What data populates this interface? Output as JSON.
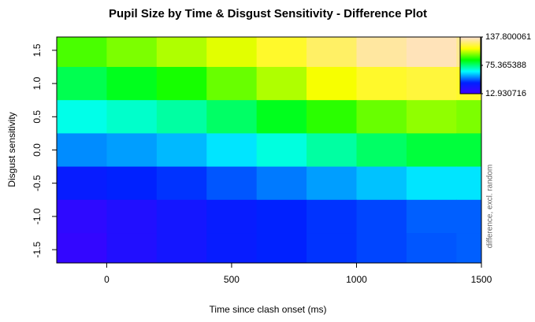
{
  "chart_data": {
    "type": "heatmap",
    "title": "Pupil Size by Time & Disgust Sensitivity - Difference Plot",
    "x_label": "Time since clash onset (ms)",
    "y_label": "Disgust sensitivity",
    "colorbar_label": "difference, excl. random",
    "x": [
      -100,
      100,
      300,
      500,
      700,
      900,
      1100,
      1300,
      1500
    ],
    "y": [
      1.5,
      1.0,
      0.5,
      0,
      -0.5,
      -1.0,
      -1.5
    ],
    "z": [
      [
        95,
        100,
        105,
        110,
        118,
        125,
        132,
        135,
        130
      ],
      [
        80,
        85,
        90,
        98,
        105,
        112,
        118,
        120,
        118
      ],
      [
        65,
        68,
        72,
        78,
        85,
        92,
        98,
        102,
        100
      ],
      [
        50,
        52,
        55,
        60,
        66,
        72,
        78,
        82,
        82
      ],
      [
        35,
        38,
        40,
        44,
        48,
        52,
        56,
        60,
        60
      ],
      [
        20,
        25,
        30,
        35,
        38,
        40,
        42,
        45,
        45
      ],
      [
        18,
        25,
        30,
        35,
        38,
        40,
        42,
        44,
        45
      ]
    ],
    "colors": [
      "#4000ff",
      "#0020ff",
      "#00ffff",
      "#00ff00",
      "#ffff00",
      "#ffe0d0"
    ],
    "xlim": [
      -200,
      1500
    ],
    "xticks": [
      0,
      500,
      1000,
      1500
    ],
    "ylim": [
      -1.7,
      1.7
    ],
    "yticks": [
      {
        "value": -1.5,
        "label": "-1.5"
      },
      {
        "value": -1,
        "label": "-1.0"
      },
      {
        "value": -0.5,
        "label": "-0.5"
      },
      {
        "value": 0,
        "label": "0.0"
      },
      {
        "value": 0.5,
        "label": "0.5"
      },
      {
        "value": 1,
        "label": "1.0"
      },
      {
        "value": 1.5,
        "label": "1.5"
      }
    ],
    "zlim": [
      12.930716,
      137.800061
    ],
    "zticks": [
      12.930716,
      75.365388,
      137.800061
    ]
  }
}
